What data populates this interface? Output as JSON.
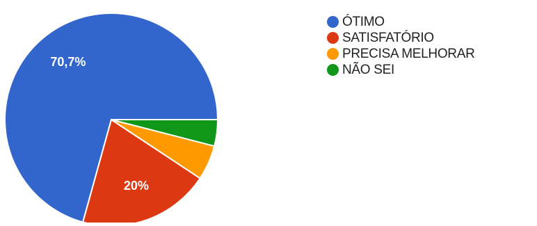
{
  "chart_data": {
    "type": "pie",
    "categories": [
      "ÓTIMO",
      "SATISFATÓRIO",
      "PRECISA MELHORAR",
      "NÃO SEI"
    ],
    "values": [
      70.7,
      20.0,
      5.3,
      4.0
    ],
    "colors": [
      "#3366cc",
      "#dc3912",
      "#ff9900",
      "#109618"
    ],
    "data_labels": [
      "70,7%",
      "20%",
      "",
      ""
    ],
    "legend_position": "right",
    "start": "3 o'clock, counter-clockwise"
  }
}
